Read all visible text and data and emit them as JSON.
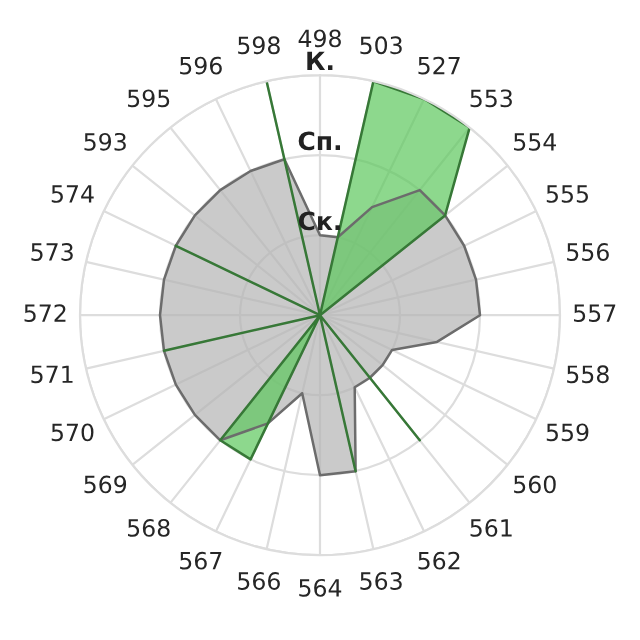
{
  "chart_data": {
    "type": "radar",
    "categories": [
      "498",
      "503",
      "527",
      "553",
      "554",
      "555",
      "556",
      "557",
      "558",
      "559",
      "560",
      "561",
      "562",
      "563",
      "564",
      "566",
      "567",
      "568",
      "569",
      "570",
      "571",
      "572",
      "573",
      "574",
      "593",
      "595",
      "596",
      "598"
    ],
    "ylim": [
      0,
      3
    ],
    "yticks": [
      {
        "value": 1,
        "label": "Ск."
      },
      {
        "value": 2,
        "label": "Сп."
      },
      {
        "value": 3,
        "label": "К."
      }
    ],
    "grid": true,
    "series": [
      {
        "color": "#b4b4b4",
        "values": [
          1.0,
          1.0,
          1.5,
          2.0,
          2.0,
          2.0,
          2.0,
          2.0,
          1.5,
          1.0,
          1.0,
          1.0,
          1.0,
          2.0,
          2.0,
          1.0,
          1.5,
          2.0,
          2.0,
          2.0,
          2.0,
          2.0,
          2.0,
          2.0,
          2.0,
          2.0,
          2.0,
          2.0
        ]
      },
      {
        "color": "#5cc85c",
        "values": [
          0,
          3,
          3,
          3,
          2,
          0,
          0,
          0,
          0,
          0,
          0,
          2,
          0,
          2,
          0,
          0,
          2,
          2,
          0,
          0,
          2,
          0,
          0,
          2,
          0,
          0,
          0,
          3
        ]
      }
    ]
  }
}
